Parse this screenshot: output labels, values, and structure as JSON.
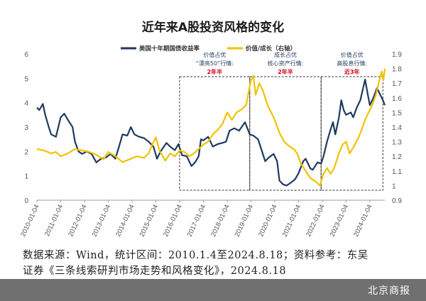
{
  "chart_data": {
    "type": "line",
    "title": "近年来A股投资风格的变化",
    "left_axis": {
      "min": 0,
      "max": 6,
      "ticks": [
        "0",
        "1",
        "2",
        "3",
        "4",
        "5",
        "6"
      ]
    },
    "right_axis": {
      "min": 0.9,
      "max": 1.9,
      "label": "",
      "ticks": [
        "0.9",
        "1",
        "1.1",
        "1.2",
        "1.3",
        "1.4",
        "1.5",
        "1.6",
        "1.7",
        "1.8",
        "1.9"
      ]
    },
    "x_ticks": [
      "2010-01-04",
      "2011-01-04",
      "2012-01-04",
      "2013-01-04",
      "2014-01-04",
      "2015-01-04",
      "2016-01-04",
      "2017-01-04",
      "2018-01-04",
      "2019-01-04",
      "2020-01-04",
      "2021-01-04",
      "2022-01-04",
      "2023-01-04",
      "2024-01-04"
    ],
    "x_range": [
      2010.0,
      2024.63
    ],
    "legend_position": "top",
    "grid": false,
    "series": [
      {
        "name": "美国十年期国债收益率",
        "axis": "left",
        "color": "#1f3a5f",
        "points": [
          [
            2010.0,
            3.8
          ],
          [
            2010.1,
            3.7
          ],
          [
            2010.25,
            3.95
          ],
          [
            2010.35,
            3.5
          ],
          [
            2010.5,
            3.0
          ],
          [
            2010.6,
            2.7
          ],
          [
            2010.8,
            2.6
          ],
          [
            2011.0,
            3.4
          ],
          [
            2011.15,
            3.55
          ],
          [
            2011.3,
            3.3
          ],
          [
            2011.5,
            3.0
          ],
          [
            2011.6,
            2.4
          ],
          [
            2011.75,
            2.0
          ],
          [
            2011.9,
            1.9
          ],
          [
            2012.1,
            2.0
          ],
          [
            2012.3,
            1.9
          ],
          [
            2012.5,
            1.55
          ],
          [
            2012.7,
            1.7
          ],
          [
            2012.9,
            1.75
          ],
          [
            2013.1,
            1.9
          ],
          [
            2013.3,
            1.7
          ],
          [
            2013.45,
            2.2
          ],
          [
            2013.6,
            2.7
          ],
          [
            2013.8,
            2.65
          ],
          [
            2013.95,
            3.0
          ],
          [
            2014.1,
            2.7
          ],
          [
            2014.3,
            2.6
          ],
          [
            2014.5,
            2.55
          ],
          [
            2014.7,
            2.4
          ],
          [
            2014.9,
            2.2
          ],
          [
            2015.05,
            1.7
          ],
          [
            2015.2,
            2.0
          ],
          [
            2015.45,
            2.35
          ],
          [
            2015.6,
            2.2
          ],
          [
            2015.8,
            2.05
          ],
          [
            2015.95,
            2.3
          ],
          [
            2016.1,
            1.85
          ],
          [
            2016.3,
            1.8
          ],
          [
            2016.5,
            1.4
          ],
          [
            2016.65,
            1.55
          ],
          [
            2016.8,
            1.8
          ],
          [
            2016.9,
            2.5
          ],
          [
            2017.0,
            2.45
          ],
          [
            2017.2,
            2.6
          ],
          [
            2017.4,
            2.2
          ],
          [
            2017.6,
            2.3
          ],
          [
            2017.8,
            2.35
          ],
          [
            2017.95,
            2.4
          ],
          [
            2018.1,
            2.85
          ],
          [
            2018.3,
            2.95
          ],
          [
            2018.5,
            2.85
          ],
          [
            2018.75,
            3.2
          ],
          [
            2018.95,
            2.7
          ],
          [
            2019.1,
            2.65
          ],
          [
            2019.3,
            2.5
          ],
          [
            2019.45,
            2.05
          ],
          [
            2019.6,
            1.6
          ],
          [
            2019.75,
            1.75
          ],
          [
            2019.95,
            1.9
          ],
          [
            2020.1,
            1.6
          ],
          [
            2020.2,
            0.8
          ],
          [
            2020.35,
            0.65
          ],
          [
            2020.5,
            0.6
          ],
          [
            2020.65,
            0.7
          ],
          [
            2020.85,
            0.85
          ],
          [
            2021.0,
            1.1
          ],
          [
            2021.2,
            1.6
          ],
          [
            2021.3,
            1.7
          ],
          [
            2021.5,
            1.3
          ],
          [
            2021.6,
            1.25
          ],
          [
            2021.8,
            1.55
          ],
          [
            2021.95,
            1.5
          ],
          [
            2022.05,
            1.8
          ],
          [
            2022.2,
            2.4
          ],
          [
            2022.35,
            2.9
          ],
          [
            2022.45,
            3.2
          ],
          [
            2022.55,
            2.7
          ],
          [
            2022.7,
            3.4
          ],
          [
            2022.8,
            4.1
          ],
          [
            2022.9,
            3.7
          ],
          [
            2023.0,
            3.5
          ],
          [
            2023.2,
            3.6
          ],
          [
            2023.3,
            3.4
          ],
          [
            2023.45,
            3.8
          ],
          [
            2023.6,
            4.1
          ],
          [
            2023.8,
            4.95
          ],
          [
            2023.9,
            4.4
          ],
          [
            2024.0,
            3.9
          ],
          [
            2024.15,
            4.2
          ],
          [
            2024.3,
            4.6
          ],
          [
            2024.45,
            4.3
          ],
          [
            2024.55,
            4.1
          ],
          [
            2024.63,
            3.9
          ]
        ]
      },
      {
        "name": "价值/成长（右轴）",
        "axis": "right",
        "color": "#f2c200",
        "points": [
          [
            2010.0,
            1.25
          ],
          [
            2010.3,
            1.24
          ],
          [
            2010.6,
            1.22
          ],
          [
            2010.8,
            1.23
          ],
          [
            2011.0,
            1.2
          ],
          [
            2011.3,
            1.22
          ],
          [
            2011.6,
            1.25
          ],
          [
            2011.9,
            1.24
          ],
          [
            2012.2,
            1.23
          ],
          [
            2012.5,
            1.21
          ],
          [
            2012.8,
            1.18
          ],
          [
            2013.0,
            1.23
          ],
          [
            2013.3,
            1.2
          ],
          [
            2013.6,
            1.16
          ],
          [
            2013.9,
            1.18
          ],
          [
            2014.2,
            1.2
          ],
          [
            2014.5,
            1.19
          ],
          [
            2014.7,
            1.22
          ],
          [
            2014.85,
            1.28
          ],
          [
            2015.0,
            1.33
          ],
          [
            2015.15,
            1.24
          ],
          [
            2015.4,
            1.17
          ],
          [
            2015.6,
            1.22
          ],
          [
            2015.8,
            1.2
          ],
          [
            2016.0,
            1.24
          ],
          [
            2016.2,
            1.23
          ],
          [
            2016.4,
            1.2
          ],
          [
            2016.6,
            1.22
          ],
          [
            2016.8,
            1.25
          ],
          [
            2017.0,
            1.28
          ],
          [
            2017.2,
            1.3
          ],
          [
            2017.4,
            1.35
          ],
          [
            2017.6,
            1.38
          ],
          [
            2017.8,
            1.42
          ],
          [
            2018.0,
            1.5
          ],
          [
            2018.2,
            1.45
          ],
          [
            2018.4,
            1.5
          ],
          [
            2018.6,
            1.52
          ],
          [
            2018.8,
            1.55
          ],
          [
            2019.0,
            1.72
          ],
          [
            2019.1,
            1.75
          ],
          [
            2019.2,
            1.62
          ],
          [
            2019.35,
            1.7
          ],
          [
            2019.5,
            1.65
          ],
          [
            2019.7,
            1.55
          ],
          [
            2019.85,
            1.5
          ],
          [
            2020.0,
            1.45
          ],
          [
            2020.2,
            1.36
          ],
          [
            2020.4,
            1.3
          ],
          [
            2020.6,
            1.27
          ],
          [
            2020.8,
            1.25
          ],
          [
            2020.95,
            1.22
          ],
          [
            2021.1,
            1.15
          ],
          [
            2021.3,
            1.1
          ],
          [
            2021.5,
            1.05
          ],
          [
            2021.7,
            1.03
          ],
          [
            2021.9,
            1.0
          ],
          [
            2022.05,
            1.08
          ],
          [
            2022.2,
            1.12
          ],
          [
            2022.35,
            1.08
          ],
          [
            2022.5,
            1.12
          ],
          [
            2022.7,
            1.22
          ],
          [
            2022.85,
            1.28
          ],
          [
            2023.0,
            1.3
          ],
          [
            2023.15,
            1.22
          ],
          [
            2023.3,
            1.26
          ],
          [
            2023.5,
            1.32
          ],
          [
            2023.65,
            1.38
          ],
          [
            2023.8,
            1.45
          ],
          [
            2023.95,
            1.5
          ],
          [
            2024.1,
            1.55
          ],
          [
            2024.25,
            1.62
          ],
          [
            2024.4,
            1.72
          ],
          [
            2024.5,
            1.78
          ],
          [
            2024.57,
            1.72
          ],
          [
            2024.63,
            1.8
          ]
        ]
      }
    ],
    "annotations": [
      {
        "lines": [
          "价值占优",
          "“漂亮50”行情:"
        ],
        "duration": "2年半",
        "range": [
          2016.0,
          2018.95
        ]
      },
      {
        "lines": [
          "成长占优",
          "核心资产行情:"
        ],
        "duration": "2年半",
        "range": [
          2018.95,
          2021.95
        ]
      },
      {
        "lines": [
          "价值占优",
          "高股息行情:"
        ],
        "duration": "近3年",
        "range": [
          2021.95,
          2024.55
        ]
      }
    ]
  },
  "caption": {
    "line1": "数据来源：Wind，统计区间：2010.1.4至2024.8.18；资料参考：东吴",
    "line2": "证券《三条线索研判市场走势和风格变化》，2024.8.18"
  },
  "footer": {
    "brand": "北京商报"
  }
}
